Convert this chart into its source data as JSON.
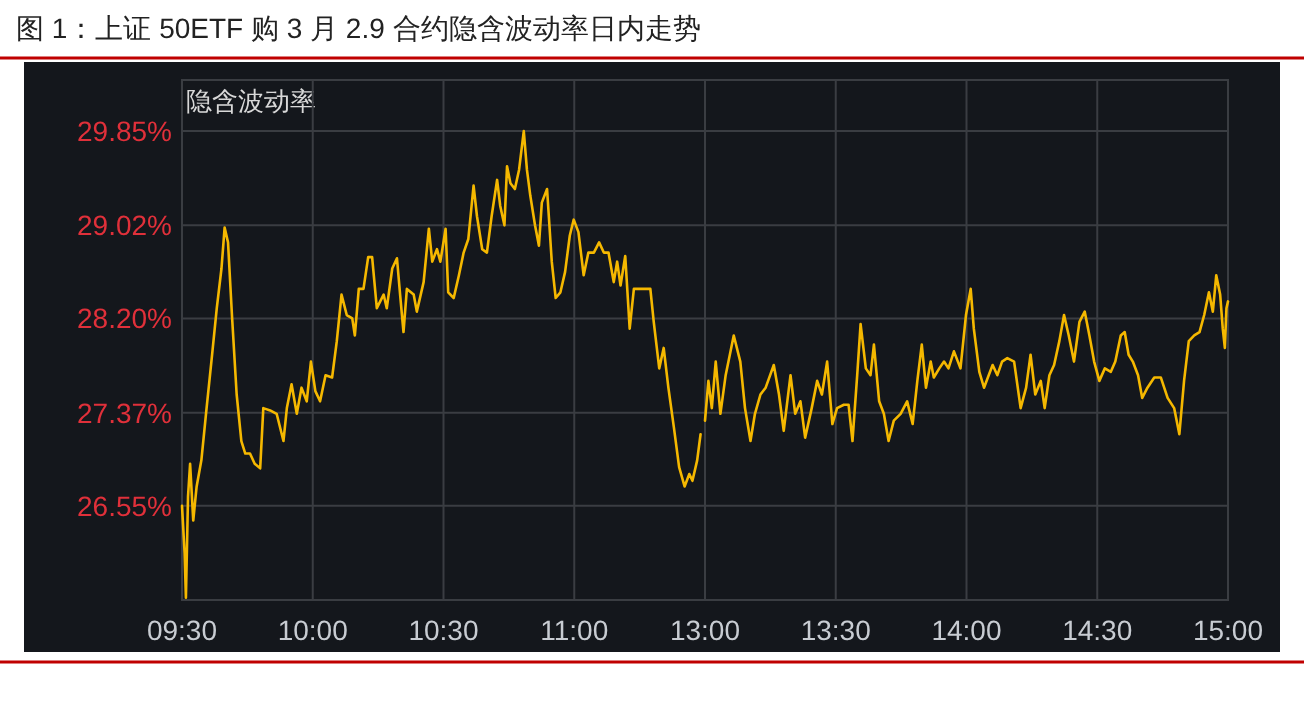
{
  "chart_data": [
    {
      "type": "line",
      "title": "图 1：上证 50ETF 购 3 月 2.9 合约隐含波动率日内走势",
      "subtitle": "隐含波动率",
      "x": [
        9.5,
        9.51,
        9.515,
        9.523,
        9.531,
        9.543,
        9.556,
        9.574,
        9.594,
        9.615,
        9.633,
        9.651,
        9.663,
        9.676,
        9.691,
        9.709,
        9.727,
        9.742,
        9.76,
        9.778,
        9.799,
        9.811,
        9.837,
        9.862,
        9.888,
        9.901,
        9.919,
        9.939,
        9.957,
        9.977,
        9.993,
        10.01,
        10.028,
        10.049,
        10.074,
        10.092,
        10.11,
        10.13,
        10.151,
        10.161,
        10.176,
        10.194,
        10.212,
        10.227,
        10.245,
        10.271,
        10.283,
        10.304,
        10.322,
        10.334,
        10.347,
        10.36,
        10.386,
        10.398,
        10.424,
        10.444,
        10.457,
        10.475,
        10.488,
        10.508,
        10.518,
        10.539,
        10.559,
        10.577,
        10.595,
        10.615,
        10.628,
        10.648,
        10.666,
        10.684,
        10.705,
        10.717,
        10.733,
        10.743,
        10.756,
        10.773,
        10.789,
        10.807,
        10.819,
        10.832,
        10.85,
        10.865,
        10.876,
        10.896,
        10.914,
        10.929,
        10.947,
        10.965,
        10.983,
        10.998,
        11.016,
        11.036,
        11.054,
        11.075,
        11.095,
        11.113,
        11.131,
        11.151,
        11.164,
        11.177,
        11.195,
        11.212,
        11.228,
        11.253,
        11.291,
        11.304,
        11.325,
        11.342,
        11.36,
        11.381,
        11.401,
        11.422,
        11.44,
        11.452,
        11.47,
        11.483
      ],
      "series": [
        {
          "color": "#f5b800",
          "values": [
            26.55,
            26.13,
            25.74,
            26.63,
            26.92,
            26.42,
            26.72,
            26.95,
            27.41,
            27.88,
            28.29,
            28.64,
            29.0,
            28.87,
            28.23,
            27.53,
            27.12,
            27.01,
            27.01,
            26.92,
            26.88,
            27.41,
            27.39,
            27.36,
            27.12,
            27.41,
            27.62,
            27.36,
            27.59,
            27.47,
            27.82,
            27.56,
            27.47,
            27.7,
            27.68,
            28.0,
            28.41,
            28.23,
            28.2,
            28.05,
            28.46,
            28.46,
            28.74,
            28.74,
            28.29,
            28.41,
            28.29,
            28.64,
            28.73,
            28.41,
            28.08,
            28.46,
            28.41,
            28.26,
            28.52,
            28.99,
            28.7,
            28.81,
            28.7,
            28.99,
            28.43,
            28.38,
            28.58,
            28.78,
            28.9,
            29.37,
            29.1,
            28.81,
            28.78,
            29.1,
            29.42,
            29.19,
            29.02,
            29.54,
            29.39,
            29.34,
            29.51,
            29.85,
            29.51,
            29.28,
            29.02,
            28.84,
            29.22,
            29.34,
            28.7,
            28.38,
            28.43,
            28.61,
            28.93,
            29.07,
            28.96,
            28.58,
            28.78,
            28.78,
            28.87,
            28.78,
            28.78,
            28.52,
            28.7,
            28.49,
            28.75,
            28.11,
            28.46,
            28.46,
            28.46,
            28.17,
            27.76,
            27.94,
            27.59,
            27.24,
            26.89,
            26.72,
            26.83,
            26.77,
            26.95,
            27.18
          ]
        }
      ],
      "xlim": [
        9.5,
        11.5
      ],
      "xticks": [
        {
          "value": 9.5,
          "label": "09:30"
        },
        {
          "value": 10,
          "label": "10:00"
        },
        {
          "value": 10.5,
          "label": "10:30"
        },
        {
          "value": 11,
          "label": "11:00"
        }
      ],
      "ylim": [
        25.72,
        30.3
      ],
      "yticks": [
        {
          "value": 26.55,
          "label": "26.55%"
        },
        {
          "value": 27.37,
          "label": "27.37%"
        },
        {
          "value": 28.2,
          "label": "28.20%"
        },
        {
          "value": 29.02,
          "label": "29.02%"
        },
        {
          "value": 29.85,
          "label": "29.85%"
        }
      ],
      "grid": true,
      "line_style": "solid"
    },
    {
      "type": "line",
      "x": [
        13.0,
        13.013,
        13.026,
        13.041,
        13.059,
        13.079,
        13.11,
        13.135,
        13.153,
        13.174,
        13.191,
        13.212,
        13.232,
        13.263,
        13.283,
        13.301,
        13.327,
        13.345,
        13.365,
        13.383,
        13.408,
        13.429,
        13.447,
        13.467,
        13.487,
        13.505,
        13.531,
        13.549,
        13.564,
        13.582,
        13.595,
        13.615,
        13.633,
        13.646,
        13.666,
        13.684,
        13.702,
        13.722,
        13.748,
        13.773,
        13.794,
        13.812,
        13.829,
        13.845,
        13.863,
        13.875,
        13.896,
        13.914,
        13.931,
        13.952,
        13.977,
        13.998,
        14.016,
        14.028,
        14.049,
        14.067,
        14.085,
        14.1,
        14.118,
        14.136,
        14.156,
        14.182,
        14.207,
        14.228,
        14.245,
        14.263,
        14.284,
        14.299,
        14.317,
        14.335,
        14.355,
        14.373,
        14.391,
        14.411,
        14.432,
        14.452,
        14.47,
        14.488,
        14.508,
        14.529,
        14.552,
        14.569,
        14.59,
        14.605,
        14.62,
        14.636,
        14.656,
        14.672,
        14.692,
        14.718,
        14.743,
        14.769,
        14.794,
        14.814,
        14.832,
        14.85,
        14.871,
        14.891,
        14.909,
        14.927,
        14.942,
        14.955,
        14.97,
        14.98,
        14.988,
        14.994,
        15.0
      ],
      "series": [
        {
          "color": "#f5b800",
          "values": [
            27.3,
            27.65,
            27.41,
            27.82,
            27.36,
            27.7,
            28.05,
            27.82,
            27.41,
            27.12,
            27.36,
            27.53,
            27.59,
            27.79,
            27.53,
            27.21,
            27.7,
            27.36,
            27.47,
            27.15,
            27.41,
            27.65,
            27.53,
            27.82,
            27.27,
            27.41,
            27.44,
            27.44,
            27.12,
            27.7,
            28.15,
            27.76,
            27.7,
            27.97,
            27.47,
            27.36,
            27.12,
            27.3,
            27.36,
            27.47,
            27.27,
            27.65,
            27.97,
            27.59,
            27.82,
            27.68,
            27.76,
            27.82,
            27.76,
            27.91,
            27.76,
            28.23,
            28.46,
            28.11,
            27.73,
            27.59,
            27.7,
            27.79,
            27.7,
            27.82,
            27.85,
            27.82,
            27.41,
            27.59,
            27.88,
            27.53,
            27.65,
            27.41,
            27.7,
            27.79,
            28.0,
            28.23,
            28.05,
            27.82,
            28.17,
            28.26,
            28.05,
            27.82,
            27.65,
            27.76,
            27.73,
            27.82,
            28.05,
            28.08,
            27.88,
            27.82,
            27.7,
            27.5,
            27.59,
            27.68,
            27.68,
            27.5,
            27.41,
            27.18,
            27.65,
            28.0,
            28.05,
            28.08,
            28.23,
            28.43,
            28.26,
            28.58,
            28.41,
            28.11,
            27.94,
            28.29,
            28.35
          ]
        }
      ],
      "xlim": [
        13,
        15
      ],
      "xticks": [
        {
          "value": 13,
          "label": "13:00"
        },
        {
          "value": 13.5,
          "label": "13:30"
        },
        {
          "value": 14,
          "label": "14:00"
        },
        {
          "value": 14.5,
          "label": "14:30"
        },
        {
          "value": 15,
          "label": "15:00"
        }
      ],
      "ylim": [
        25.72,
        30.3
      ],
      "yticks": [
        {
          "value": 26.55,
          "label": null
        },
        {
          "value": 27.37,
          "label": null
        },
        {
          "value": 28.2,
          "label": null
        },
        {
          "value": 29.02,
          "label": null
        },
        {
          "value": 29.85,
          "label": null
        }
      ],
      "tick_labels": "x",
      "grid": true,
      "line_style": "solid"
    }
  ]
}
